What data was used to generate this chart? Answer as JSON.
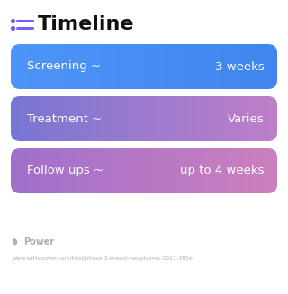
{
  "title": "Timeline",
  "title_fontsize": 16,
  "title_color": "#111111",
  "title_icon_color": "#7B5CF5",
  "background_color": "#ffffff",
  "rows": [
    {
      "left_text": "Screening ~",
      "right_text": "3 weeks",
      "color_left": "#4F94F8",
      "color_right": "#4185F0",
      "text_color": "#ffffff",
      "fontsize": 9.5
    },
    {
      "left_text": "Treatment ~",
      "right_text": "Varies",
      "color_left": "#7876D4",
      "color_right": "#C07FC8",
      "text_color": "#ffffff",
      "fontsize": 9.5
    },
    {
      "left_text": "Follow ups ~",
      "right_text": "up to 4 weeks",
      "color_left": "#A070CC",
      "color_right": "#CC80BE",
      "text_color": "#ffffff",
      "fontsize": 9.5
    }
  ],
  "footer_logo_color": "#b0b0b0",
  "footer_logo_text": "Power",
  "footer_logo_fontsize": 7,
  "footer_url": "www.withpower.com/trial/phase-3-breast-neoplasms-2021-2fl5e",
  "footer_url_fontsize": 4.5
}
